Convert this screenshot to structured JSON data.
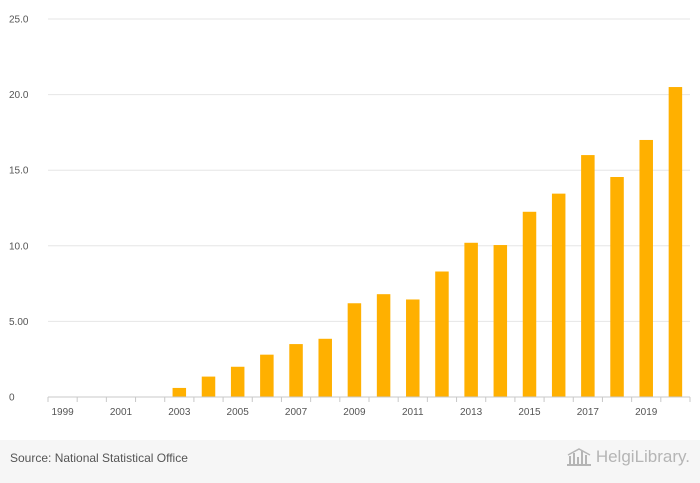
{
  "chart_data": {
    "type": "bar",
    "categories": [
      "1999",
      "2000",
      "2001",
      "2002",
      "2003",
      "2004",
      "2005",
      "2006",
      "2007",
      "2008",
      "2009",
      "2010",
      "2011",
      "2012",
      "2013",
      "2014",
      "2015",
      "2016",
      "2017",
      "2018",
      "2019",
      "2020"
    ],
    "x_tick_labels": [
      "1999",
      "2001",
      "2003",
      "2005",
      "2007",
      "2009",
      "2011",
      "2013",
      "2015",
      "2017",
      "2019"
    ],
    "values": [
      0,
      0,
      0,
      0,
      0.6,
      1.35,
      2.0,
      2.8,
      3.5,
      3.85,
      6.2,
      6.8,
      6.45,
      8.3,
      10.2,
      10.05,
      12.25,
      13.45,
      16.0,
      14.55,
      17.0,
      20.5
    ],
    "y_ticks": [
      0,
      5,
      10,
      15,
      20,
      25
    ],
    "y_tick_labels": [
      "0",
      "5.00",
      "10.0",
      "15.0",
      "20.0",
      "25.0"
    ],
    "ylim": [
      0,
      25
    ],
    "title": "",
    "xlabel": "",
    "ylabel": "",
    "bar_color": "#ffb000",
    "grid": true
  },
  "footer": {
    "source": "Source: National Statistical Office",
    "brand": "HelgiLibrary."
  },
  "colors": {
    "gridline": "#e6e6e6",
    "axis": "#c8c8c8",
    "footer_bg": "#f6f6f6"
  }
}
